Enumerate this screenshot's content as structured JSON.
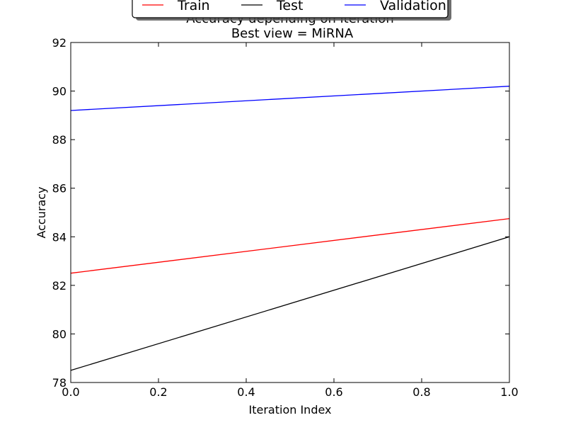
{
  "chart_data": {
    "type": "line",
    "title_line1": "Accuracy depending on iteration",
    "title_line2": "Best view = MiRNA",
    "xlabel": "Iteration Index",
    "ylabel": "Accuracy",
    "xlim": [
      0.0,
      1.0
    ],
    "ylim": [
      78,
      92
    ],
    "xticks": [
      "0.0",
      "0.2",
      "0.4",
      "0.6",
      "0.8",
      "1.0"
    ],
    "yticks": [
      "78",
      "80",
      "82",
      "84",
      "86",
      "88",
      "90",
      "92"
    ],
    "grid": false,
    "legend_position": "top-center",
    "series": [
      {
        "name": "Train",
        "color": "#ff0000",
        "x": [
          0.0,
          1.0
        ],
        "y": [
          82.5,
          84.75
        ]
      },
      {
        "name": "Test",
        "color": "#000000",
        "x": [
          0.0,
          1.0
        ],
        "y": [
          78.5,
          84.0
        ]
      },
      {
        "name": "Validation",
        "color": "#0000ff",
        "x": [
          0.0,
          1.0
        ],
        "y": [
          89.2,
          90.2
        ]
      }
    ]
  }
}
